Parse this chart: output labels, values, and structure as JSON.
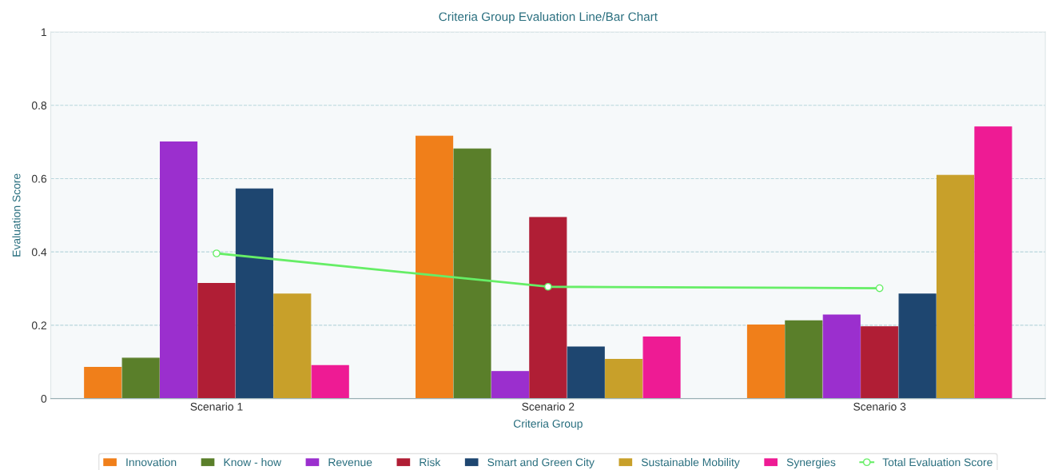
{
  "chart_data": {
    "type": "bar",
    "title": "Criteria Group Evaluation Line/Bar Chart",
    "xlabel": "Criteria Group",
    "ylabel": "Evaluation Score",
    "categories": [
      "Scenario 1",
      "Scenario 2",
      "Scenario 3"
    ],
    "series": [
      {
        "name": "Innovation",
        "color": "#f07f1a",
        "values": [
          0.085,
          0.716,
          0.201
        ]
      },
      {
        "name": "Know - how",
        "color": "#5a7f2a",
        "values": [
          0.11,
          0.681,
          0.212
        ]
      },
      {
        "name": "Revenue",
        "color": "#9b2fce",
        "values": [
          0.7,
          0.074,
          0.228
        ]
      },
      {
        "name": "Risk",
        "color": "#b01e35",
        "values": [
          0.314,
          0.494,
          0.196
        ]
      },
      {
        "name": "Smart and Green City",
        "color": "#1e4670",
        "values": [
          0.572,
          0.141,
          0.285
        ]
      },
      {
        "name": "Sustainable Mobility",
        "color": "#c8a02a",
        "values": [
          0.285,
          0.107,
          0.609
        ]
      },
      {
        "name": "Synergies",
        "color": "#ee1b94",
        "values": [
          0.09,
          0.168,
          0.741
        ]
      },
      {
        "name": "Total Evaluation Score",
        "type": "line",
        "color": "#66ee66",
        "marker": "circle",
        "values": [
          0.396,
          0.305,
          0.301
        ]
      }
    ],
    "ylim": [
      0,
      1
    ],
    "yticks": [
      0,
      0.2,
      0.4,
      0.6,
      0.8,
      1
    ],
    "grid": "y",
    "legend": "bottom"
  }
}
